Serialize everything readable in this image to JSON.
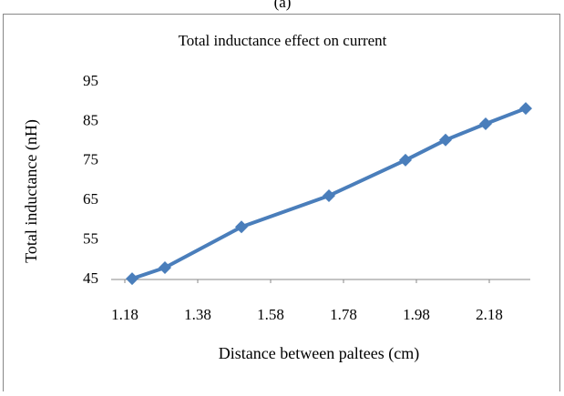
{
  "chart_data": {
    "type": "line",
    "panel_label": "(a)",
    "title": "Total inductance effect on current",
    "x_label": "Distance between paltees (cm)",
    "y_label": "Total inductance (nH)",
    "x": [
      1.2,
      1.29,
      1.5,
      1.74,
      1.95,
      2.06,
      2.17,
      2.28
    ],
    "series": [
      {
        "name": "Total inductance",
        "color": "#4a7ebb",
        "values": [
          45.2,
          48,
          58.3,
          66.2,
          75.2,
          80.3,
          84.4,
          88.3
        ]
      }
    ],
    "xlim": [
      1.1425,
      2.2925
    ],
    "xticks": [
      1.18,
      1.38,
      1.58,
      1.78,
      1.98,
      2.18
    ],
    "ylim": [
      45,
      95
    ],
    "yticks": [
      45,
      55,
      65,
      75,
      85,
      95
    ],
    "grid": false
  }
}
